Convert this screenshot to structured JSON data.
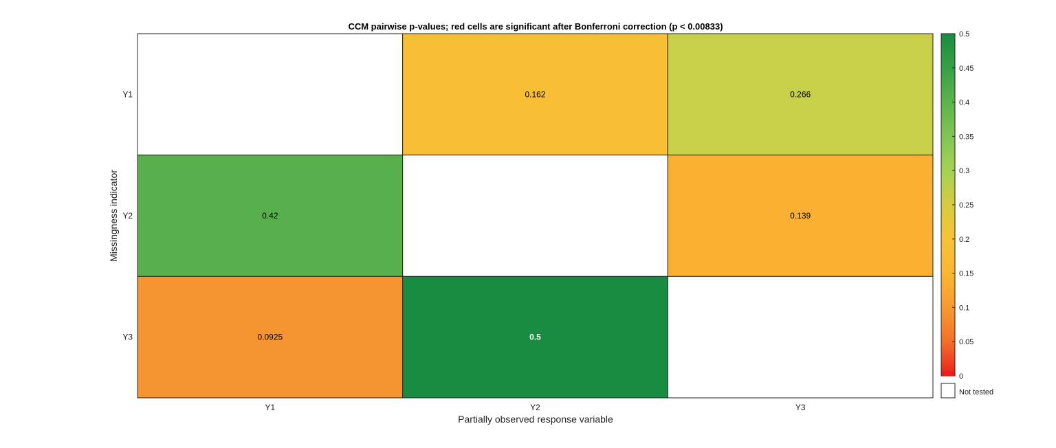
{
  "chart_data": {
    "type": "heatmap",
    "title": "CCM pairwise p-values; red cells are significant after Bonferroni correction (p < 0.00833)",
    "xlabel": "Partially observed response variable",
    "ylabel": "Missingness indicator",
    "x_categories": [
      "Y1",
      "Y2",
      "Y3"
    ],
    "y_categories": [
      "Y1",
      "Y2",
      "Y3"
    ],
    "values": [
      [
        null,
        0.162,
        0.266
      ],
      [
        0.42,
        null,
        0.139
      ],
      [
        0.0925,
        0.5,
        null
      ]
    ],
    "cell_labels": [
      [
        "",
        "0.162",
        "0.266"
      ],
      [
        "0.42",
        "",
        "0.139"
      ],
      [
        "0.0925",
        "0.5",
        ""
      ]
    ],
    "colorbar": {
      "range": [
        0,
        0.5
      ],
      "ticks": [
        "0",
        "0.05",
        "0.1",
        "0.15",
        "0.2",
        "0.25",
        "0.3",
        "0.35",
        "0.4",
        "0.45",
        "0.5"
      ],
      "significance_color": "#e8211c",
      "not_tested_label": "Not tested"
    },
    "colors": {
      "cell_colors": [
        [
          "#ffffff",
          "#f9bf34",
          "#c8cf49"
        ],
        [
          "#58b04c",
          "#ffffff",
          "#fbb034"
        ],
        [
          "#f69431",
          "#1a8c42",
          "#ffffff"
        ]
      ],
      "cell_text_colors": [
        [
          "#000000",
          "#000000",
          "#000000"
        ],
        [
          "#000000",
          "#000000",
          "#000000"
        ],
        [
          "#000000",
          "#ffffff",
          "#000000"
        ]
      ],
      "colorbar_stops": [
        {
          "value": 0,
          "color": "#e8211c"
        },
        {
          "value": 0.05,
          "color": "#f46f2a"
        },
        {
          "value": 0.1,
          "color": "#f79a30"
        },
        {
          "value": 0.15,
          "color": "#fab733"
        },
        {
          "value": 0.2,
          "color": "#f8c236"
        },
        {
          "value": 0.25,
          "color": "#d6cb40"
        },
        {
          "value": 0.3,
          "color": "#a6d254"
        },
        {
          "value": 0.35,
          "color": "#82c454"
        },
        {
          "value": 0.4,
          "color": "#5db34b"
        },
        {
          "value": 0.45,
          "color": "#36a046"
        },
        {
          "value": 0.5,
          "color": "#1a8c42"
        }
      ]
    }
  }
}
